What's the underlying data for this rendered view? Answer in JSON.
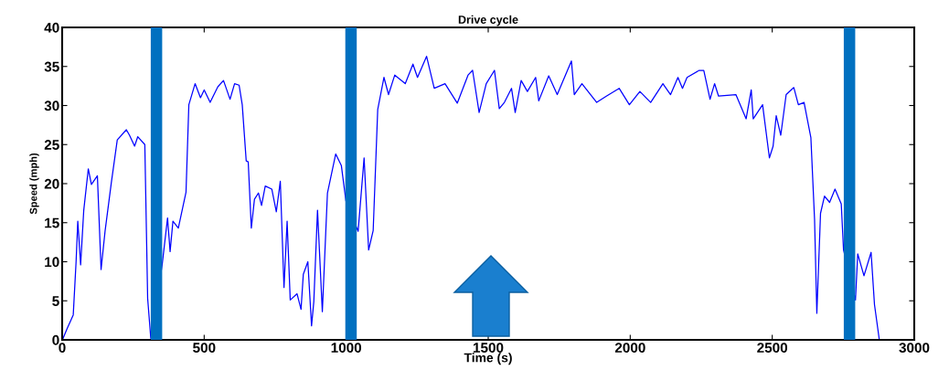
{
  "chart_data": {
    "type": "line",
    "title": "Drive cycle",
    "xlabel": "Time (s)",
    "ylabel": "Speed (mph)",
    "xlim": [
      0,
      3000
    ],
    "ylim": [
      0,
      40
    ],
    "xticks": [
      0,
      500,
      1000,
      1500,
      2000,
      2500,
      3000
    ],
    "yticks": [
      0,
      5,
      10,
      15,
      20,
      25,
      30,
      35,
      40
    ],
    "grid": false,
    "legend": false,
    "marker": "none",
    "line_style": "solid",
    "series": [
      {
        "color": "#0000ff",
        "x": [
          1,
          17,
          39,
          49,
          55,
          65,
          76,
          92,
          103,
          124,
          137,
          151,
          173,
          194,
          226,
          237,
          255,
          266,
          291,
          301,
          312,
          352,
          371,
          380,
          390,
          409,
          436,
          446,
          468,
          487,
          500,
          521,
          548,
          568,
          591,
          607,
          623,
          634,
          648,
          655,
          666,
          677,
          691,
          702,
          715,
          738,
          754,
          768,
          781,
          792,
          803,
          827,
          841,
          849,
          865,
          878,
          886,
          899,
          916,
          934,
          963,
          983,
          999,
          1042,
          1063,
          1079,
          1095,
          1111,
          1133,
          1149,
          1171,
          1208,
          1235,
          1251,
          1283,
          1310,
          1348,
          1391,
          1429,
          1445,
          1468,
          1493,
          1522,
          1539,
          1557,
          1582,
          1595,
          1616,
          1638,
          1667,
          1678,
          1713,
          1743,
          1793,
          1803,
          1830,
          1882,
          1916,
          1961,
          1997,
          2034,
          2072,
          2115,
          2142,
          2168,
          2184,
          2200,
          2243,
          2259,
          2281,
          2297,
          2311,
          2372,
          2408,
          2426,
          2433,
          2466,
          2490,
          2503,
          2514,
          2530,
          2549,
          2576,
          2592,
          2612,
          2636,
          2649,
          2657,
          2670,
          2684,
          2702,
          2721,
          2743,
          2751,
          2793,
          2801,
          2823,
          2848,
          2860,
          2877
        ],
        "values": [
          0,
          1.4,
          3.2,
          10,
          15.2,
          9.6,
          16.6,
          21.9,
          19.9,
          21,
          9,
          13.9,
          20.1,
          25.6,
          26.9,
          26.2,
          24.8,
          26,
          25,
          5.3,
          0.2,
          9.6,
          15.6,
          11.3,
          15.2,
          14.3,
          18.9,
          30.1,
          32.8,
          31,
          32,
          30.4,
          32.4,
          33.2,
          30.8,
          32.8,
          32.6,
          30.1,
          22.9,
          22.8,
          14.3,
          18,
          18.8,
          17.2,
          19.7,
          19.3,
          16.4,
          20.3,
          6.7,
          15.2,
          5.1,
          5.9,
          3.9,
          8.4,
          10,
          1.8,
          4.9,
          16.6,
          3.6,
          18.8,
          23.8,
          22.3,
          17.8,
          13.9,
          23.3,
          11.5,
          14,
          29.5,
          33.6,
          31.4,
          33.9,
          32.8,
          35.3,
          33.6,
          36.3,
          32.2,
          32.8,
          30.3,
          33.9,
          34.5,
          29.1,
          32.8,
          34.5,
          29.6,
          30.4,
          32.2,
          29.1,
          33.2,
          31.8,
          33.6,
          30.6,
          33.8,
          31.4,
          35.7,
          31.4,
          32.8,
          30.4,
          31.2,
          32.2,
          30.1,
          31.8,
          30.4,
          32.8,
          31.4,
          33.6,
          32.2,
          33.6,
          34.5,
          34.5,
          30.8,
          32.8,
          31.2,
          31.4,
          28.3,
          32,
          28.3,
          30.1,
          23.3,
          24.8,
          28.7,
          26.2,
          31.4,
          32.3,
          30.1,
          30.4,
          25.9,
          15.4,
          3.4,
          16.2,
          18.4,
          17.6,
          19.3,
          17.4,
          11.5,
          5.1,
          11,
          8.2,
          11.2,
          4.5,
          0
        ]
      }
    ],
    "ref_lines": [
      {
        "axis": "x",
        "value": 332,
        "color": "#0070c0"
      },
      {
        "axis": "x",
        "value": 1017,
        "color": "#0070c0"
      },
      {
        "axis": "x",
        "value": 2772,
        "color": "#0070c0"
      }
    ]
  }
}
